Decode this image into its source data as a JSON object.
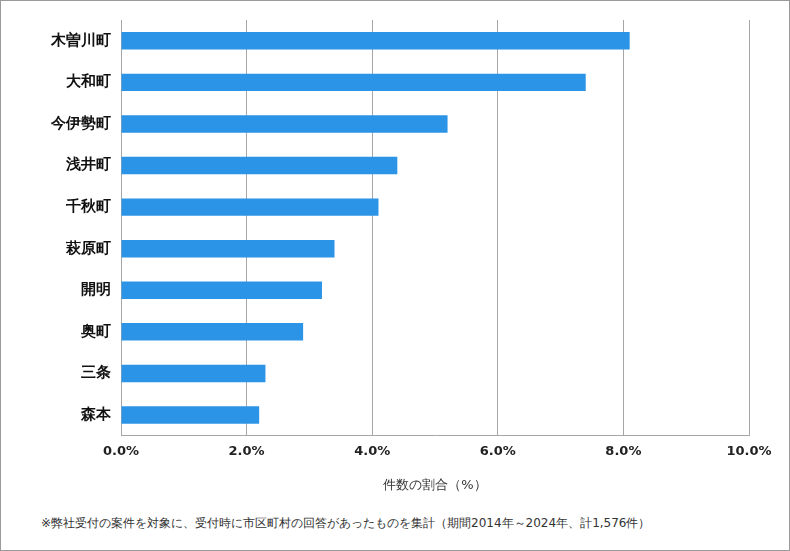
{
  "chart_data": {
    "type": "bar",
    "orientation": "horizontal",
    "categories": [
      "木曽川町",
      "大和町",
      "今伊勢町",
      "浅井町",
      "千秋町",
      "萩原町",
      "開明",
      "奥町",
      "三条",
      "森本"
    ],
    "values": [
      8.1,
      7.4,
      5.2,
      4.4,
      4.1,
      3.4,
      3.2,
      2.9,
      2.3,
      2.2
    ],
    "color": "#2b94e6",
    "x_label": "件数の割合（%）",
    "footnote": "※弊社受付の案件を対象に、受付時に市区町村の回答があったものを集計（期間2014年～2024年、計1,576件）",
    "xlim": [
      0,
      10
    ],
    "xticks": [
      {
        "value": 0,
        "label": "0.0%"
      },
      {
        "value": 2,
        "label": "2.0%"
      },
      {
        "value": 4,
        "label": "4.0%"
      },
      {
        "value": 6,
        "label": "6.0%"
      },
      {
        "value": 8,
        "label": "8.0%"
      },
      {
        "value": 10,
        "label": "10.0%"
      }
    ],
    "grid": true
  }
}
